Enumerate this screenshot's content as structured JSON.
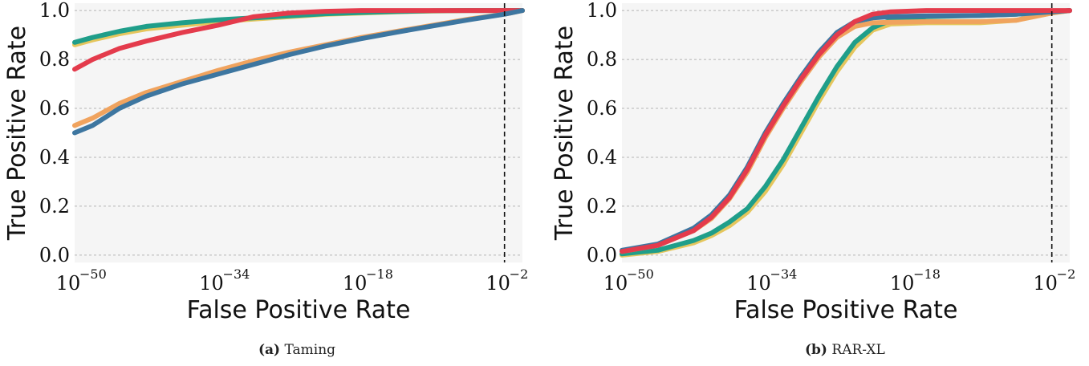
{
  "figure": {
    "captions": [
      {
        "label": "(a)",
        "text": "Taming"
      },
      {
        "label": "(b)",
        "text": "RAR-XL"
      }
    ]
  },
  "chart_data": [
    {
      "type": "line",
      "caption": "(a) Taming",
      "xlabel": "False Positive Rate",
      "ylabel": "True Positive Rate",
      "xscale": "log",
      "xlim_exponent": [
        -50,
        0
      ],
      "xticks": [
        {
          "base": "10",
          "exp": "−50"
        },
        {
          "base": "10",
          "exp": "−34"
        },
        {
          "base": "10",
          "exp": "−18"
        },
        {
          "base": "10",
          "exp": "−2"
        }
      ],
      "xtick_exponents": [
        -50,
        -34,
        -18,
        -2
      ],
      "ylim": [
        -0.03,
        1.03
      ],
      "yticks": [
        "0.0",
        "0.2",
        "0.4",
        "0.6",
        "0.8",
        "1.0"
      ],
      "grid": "horizontal dashed",
      "vline_exponent": -2,
      "series": [
        {
          "color": "#e5c65d",
          "x_exp": [
            -50,
            -48,
            -45,
            -42,
            -38,
            -34,
            -30,
            -26,
            -22,
            -18,
            -14,
            -10,
            -6,
            -2,
            0
          ],
          "y": [
            0.86,
            0.88,
            0.905,
            0.925,
            0.94,
            0.955,
            0.965,
            0.975,
            0.985,
            0.99,
            0.995,
            0.998,
            1.0,
            1.0,
            1.0
          ]
        },
        {
          "color": "#1f9e8a",
          "x_exp": [
            -50,
            -48,
            -45,
            -42,
            -38,
            -34,
            -30,
            -26,
            -22,
            -18,
            -14,
            -10,
            -6,
            -2,
            0
          ],
          "y": [
            0.87,
            0.89,
            0.915,
            0.935,
            0.95,
            0.962,
            0.97,
            0.978,
            0.987,
            0.992,
            0.996,
            0.999,
            1.0,
            1.0,
            1.0
          ]
        },
        {
          "color": "#e43b4c",
          "x_exp": [
            -50,
            -48,
            -45,
            -42,
            -38,
            -34,
            -30,
            -26,
            -22,
            -18,
            -14,
            -10,
            -6,
            -2,
            0
          ],
          "y": [
            0.76,
            0.8,
            0.845,
            0.875,
            0.91,
            0.94,
            0.975,
            0.99,
            0.997,
            1.0,
            1.0,
            1.0,
            1.0,
            1.0,
            1.0
          ]
        },
        {
          "color": "#f0a35e",
          "x_exp": [
            -50,
            -48,
            -45,
            -42,
            -38,
            -34,
            -30,
            -26,
            -22,
            -18,
            -14,
            -10,
            -6,
            -2,
            0
          ],
          "y": [
            0.53,
            0.56,
            0.62,
            0.665,
            0.71,
            0.755,
            0.795,
            0.83,
            0.86,
            0.89,
            0.915,
            0.94,
            0.965,
            0.985,
            1.0
          ]
        },
        {
          "color": "#3d76a0",
          "x_exp": [
            -50,
            -48,
            -45,
            -42,
            -38,
            -34,
            -30,
            -26,
            -22,
            -18,
            -14,
            -10,
            -6,
            -2,
            0
          ],
          "y": [
            0.5,
            0.53,
            0.6,
            0.65,
            0.7,
            0.74,
            0.78,
            0.82,
            0.855,
            0.885,
            0.912,
            0.937,
            0.962,
            0.985,
            1.0
          ]
        }
      ]
    },
    {
      "type": "line",
      "caption": "(b) RAR-XL",
      "xlabel": "False Positive Rate",
      "ylabel": "True Positive Rate",
      "xscale": "log",
      "xlim_exponent": [
        -50,
        0
      ],
      "xticks": [
        {
          "base": "10",
          "exp": "−50"
        },
        {
          "base": "10",
          "exp": "−34"
        },
        {
          "base": "10",
          "exp": "−18"
        },
        {
          "base": "10",
          "exp": "−2"
        }
      ],
      "xtick_exponents": [
        -50,
        -34,
        -18,
        -2
      ],
      "ylim": [
        -0.03,
        1.03
      ],
      "yticks": [
        "0.0",
        "0.2",
        "0.4",
        "0.6",
        "0.8",
        "1.0"
      ],
      "grid": "horizontal dashed",
      "vline_exponent": -2,
      "series": [
        {
          "color": "#e5c65d",
          "x_exp": [
            -50,
            -46,
            -42,
            -40,
            -38,
            -36,
            -34,
            -32,
            -30,
            -28,
            -26,
            -24,
            -22,
            -20,
            -16,
            -10,
            -6,
            -2,
            0
          ],
          "y": [
            0.0,
            0.015,
            0.05,
            0.08,
            0.12,
            0.175,
            0.26,
            0.37,
            0.5,
            0.63,
            0.75,
            0.85,
            0.92,
            0.945,
            0.95,
            0.95,
            0.96,
            0.99,
            1.0
          ]
        },
        {
          "color": "#1f9e8a",
          "x_exp": [
            -50,
            -46,
            -42,
            -40,
            -38,
            -36,
            -34,
            -32,
            -30,
            -28,
            -26,
            -24,
            -22,
            -20,
            -16,
            -10,
            -6,
            -2,
            0
          ],
          "y": [
            0.005,
            0.02,
            0.06,
            0.09,
            0.135,
            0.19,
            0.28,
            0.39,
            0.52,
            0.65,
            0.77,
            0.87,
            0.93,
            0.96,
            0.975,
            0.98,
            0.985,
            0.995,
            1.0
          ]
        },
        {
          "color": "#f0a35e",
          "x_exp": [
            -50,
            -46,
            -42,
            -40,
            -38,
            -36,
            -34,
            -32,
            -30,
            -28,
            -26,
            -24,
            -22,
            -20,
            -16,
            -10,
            -6,
            -2,
            0
          ],
          "y": [
            0.015,
            0.04,
            0.1,
            0.15,
            0.23,
            0.34,
            0.48,
            0.6,
            0.71,
            0.81,
            0.89,
            0.935,
            0.95,
            0.952,
            0.955,
            0.955,
            0.96,
            0.99,
            1.0
          ]
        },
        {
          "color": "#3d76a0",
          "x_exp": [
            -50,
            -46,
            -42,
            -40,
            -38,
            -36,
            -34,
            -32,
            -30,
            -28,
            -26,
            -24,
            -22,
            -20,
            -16,
            -10,
            -6,
            -2,
            0
          ],
          "y": [
            0.02,
            0.045,
            0.11,
            0.165,
            0.245,
            0.36,
            0.5,
            0.62,
            0.73,
            0.83,
            0.91,
            0.955,
            0.97,
            0.975,
            0.978,
            0.98,
            0.985,
            0.995,
            1.0
          ]
        },
        {
          "color": "#e43b4c",
          "x_exp": [
            -50,
            -46,
            -42,
            -40,
            -38,
            -36,
            -34,
            -32,
            -30,
            -28,
            -26,
            -24,
            -22,
            -20,
            -16,
            -10,
            -6,
            -2,
            0
          ],
          "y": [
            0.015,
            0.04,
            0.1,
            0.155,
            0.235,
            0.35,
            0.49,
            0.61,
            0.72,
            0.82,
            0.9,
            0.955,
            0.985,
            0.995,
            1.0,
            1.0,
            1.0,
            1.0,
            1.0
          ]
        }
      ]
    }
  ]
}
